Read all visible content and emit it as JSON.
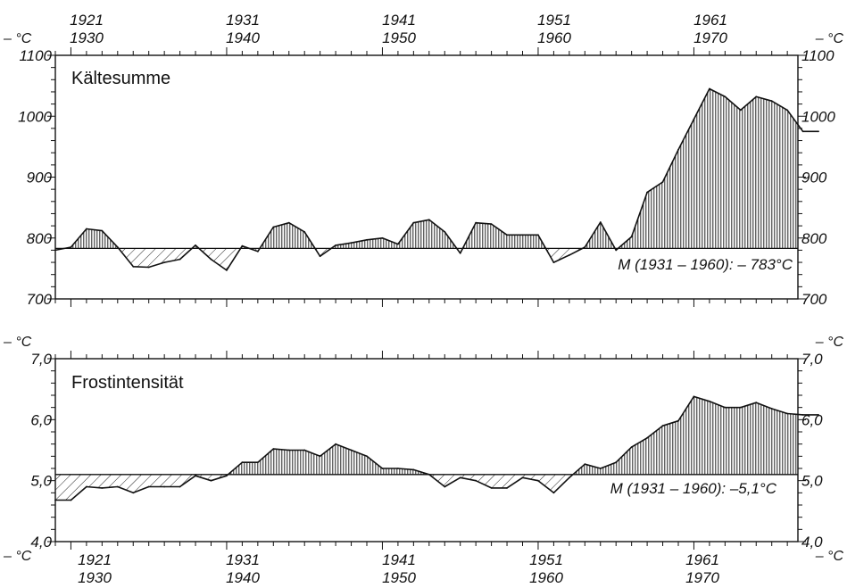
{
  "top_years": [
    {
      "first": "1921",
      "second": "1930"
    },
    {
      "first": "1931",
      "second": "1940"
    },
    {
      "first": "1941",
      "second": "1950"
    },
    {
      "first": "1951",
      "second": "1960"
    },
    {
      "first": "1961",
      "second": "1970"
    }
  ],
  "bottom_years": [
    {
      "first": "1921",
      "second": "1930"
    },
    {
      "first": "1931",
      "second": "1940"
    },
    {
      "first": "1941",
      "second": "1950"
    },
    {
      "first": "1951",
      "second": "1960"
    },
    {
      "first": "1961",
      "second": "1970"
    }
  ],
  "unit_label": "– °C",
  "chart_data": [
    {
      "type": "area",
      "title": "Kältesumme",
      "x": [
        1920,
        1921,
        1922,
        1923,
        1924,
        1925,
        1926,
        1927,
        1928,
        1929,
        1930,
        1931,
        1932,
        1933,
        1934,
        1935,
        1936,
        1937,
        1938,
        1939,
        1940,
        1941,
        1942,
        1943,
        1944,
        1945,
        1946,
        1947,
        1948,
        1949,
        1950,
        1951,
        1952,
        1953,
        1954,
        1955,
        1956,
        1957,
        1958,
        1959,
        1960,
        1961,
        1962,
        1963,
        1964,
        1965,
        1966,
        1967,
        1968,
        1969
      ],
      "y": [
        780,
        785,
        815,
        812,
        785,
        753,
        752,
        760,
        765,
        788,
        765,
        747,
        787,
        778,
        818,
        825,
        810,
        770,
        788,
        792,
        797,
        800,
        790,
        825,
        830,
        810,
        775,
        825,
        823,
        805,
        805,
        805,
        760,
        772,
        785,
        826,
        780,
        802,
        875,
        892,
        945,
        995,
        1045,
        1032,
        1010,
        1032,
        1025,
        1010,
        975,
        975
      ],
      "mean": 783,
      "mean_label": "M (1931 – 1960): – 783°C",
      "yticks": [
        "700",
        "800",
        "900",
        "1000",
        "1100"
      ],
      "ylim": [
        700,
        1100
      ]
    },
    {
      "type": "area",
      "title": "Frostintensität",
      "x": [
        1920,
        1921,
        1922,
        1923,
        1924,
        1925,
        1926,
        1927,
        1928,
        1929,
        1930,
        1931,
        1932,
        1933,
        1934,
        1935,
        1936,
        1937,
        1938,
        1939,
        1940,
        1941,
        1942,
        1943,
        1944,
        1945,
        1946,
        1947,
        1948,
        1949,
        1950,
        1951,
        1952,
        1953,
        1954,
        1955,
        1956,
        1957,
        1958,
        1959,
        1960,
        1961,
        1962,
        1963,
        1964,
        1965,
        1966,
        1967,
        1968,
        1969
      ],
      "y": [
        4.68,
        4.68,
        4.9,
        4.88,
        4.9,
        4.8,
        4.9,
        4.9,
        4.9,
        5.08,
        5.0,
        5.08,
        5.3,
        5.3,
        5.52,
        5.5,
        5.5,
        5.4,
        5.6,
        5.5,
        5.4,
        5.2,
        5.2,
        5.18,
        5.1,
        4.9,
        5.05,
        5.0,
        4.88,
        4.88,
        5.05,
        5.0,
        4.8,
        5.05,
        5.27,
        5.2,
        5.3,
        5.55,
        5.7,
        5.9,
        5.98,
        6.38,
        6.3,
        6.2,
        6.2,
        6.28,
        6.18,
        6.1,
        6.08,
        6.08
      ],
      "mean": 5.1,
      "mean_label": "M (1931 – 1960): –5,1°C",
      "yticks": [
        "4,0",
        "5,0",
        "6,0",
        "7,0"
      ],
      "ylim": [
        4.0,
        7.0
      ]
    }
  ]
}
